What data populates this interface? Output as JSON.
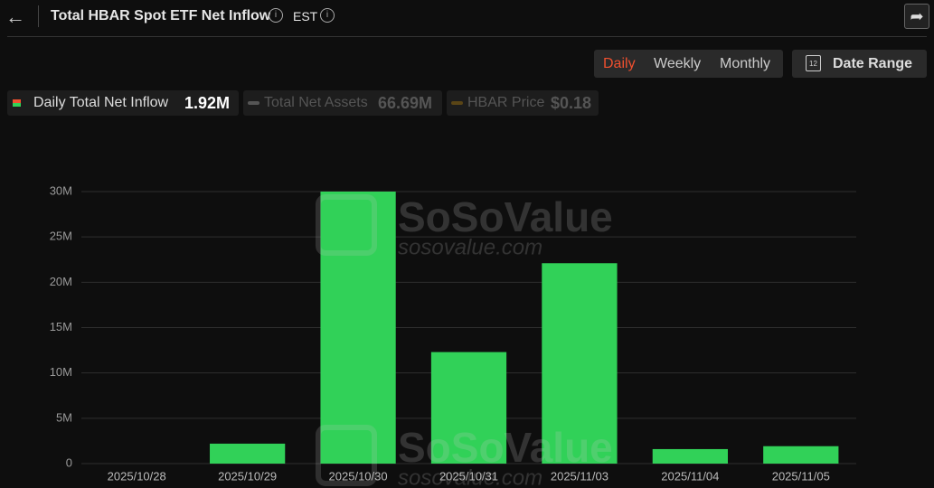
{
  "header": {
    "title": "Total HBAR Spot ETF Net Inflow",
    "timezone": "EST"
  },
  "controls": {
    "periods": [
      "Daily",
      "Weekly",
      "Monthly"
    ],
    "date_range": "Date Range",
    "calendar_day": "12"
  },
  "legend": [
    {
      "label": "Daily Total Net Inflow",
      "value": "1.92M"
    },
    {
      "label": "Total Net Assets",
      "value": "66.69M"
    },
    {
      "label": "HBAR Price",
      "value": "$0.18"
    }
  ],
  "watermark": {
    "name": "SoSoValue",
    "url": "sosovalue.com"
  },
  "chart_data": {
    "type": "bar",
    "categories": [
      "2025/10/28",
      "2025/10/29",
      "2025/10/30",
      "2025/10/31",
      "2025/11/03",
      "2025/11/04",
      "2025/11/05"
    ],
    "values": [
      0,
      2200000,
      30000000,
      12300000,
      22100000,
      1600000,
      1920000
    ],
    "color": "#31d158",
    "ylim": [
      0,
      30000000
    ],
    "yticks": [
      0,
      {
        "value": 5000000,
        "label": "5M"
      },
      {
        "value": 10000000,
        "label": "10M"
      },
      {
        "value": 15000000,
        "label": "15M"
      },
      {
        "value": 20000000,
        "label": "20M"
      },
      {
        "value": 25000000,
        "label": "25M"
      },
      {
        "value": 30000000,
        "label": "30M"
      }
    ],
    "grid": true
  }
}
